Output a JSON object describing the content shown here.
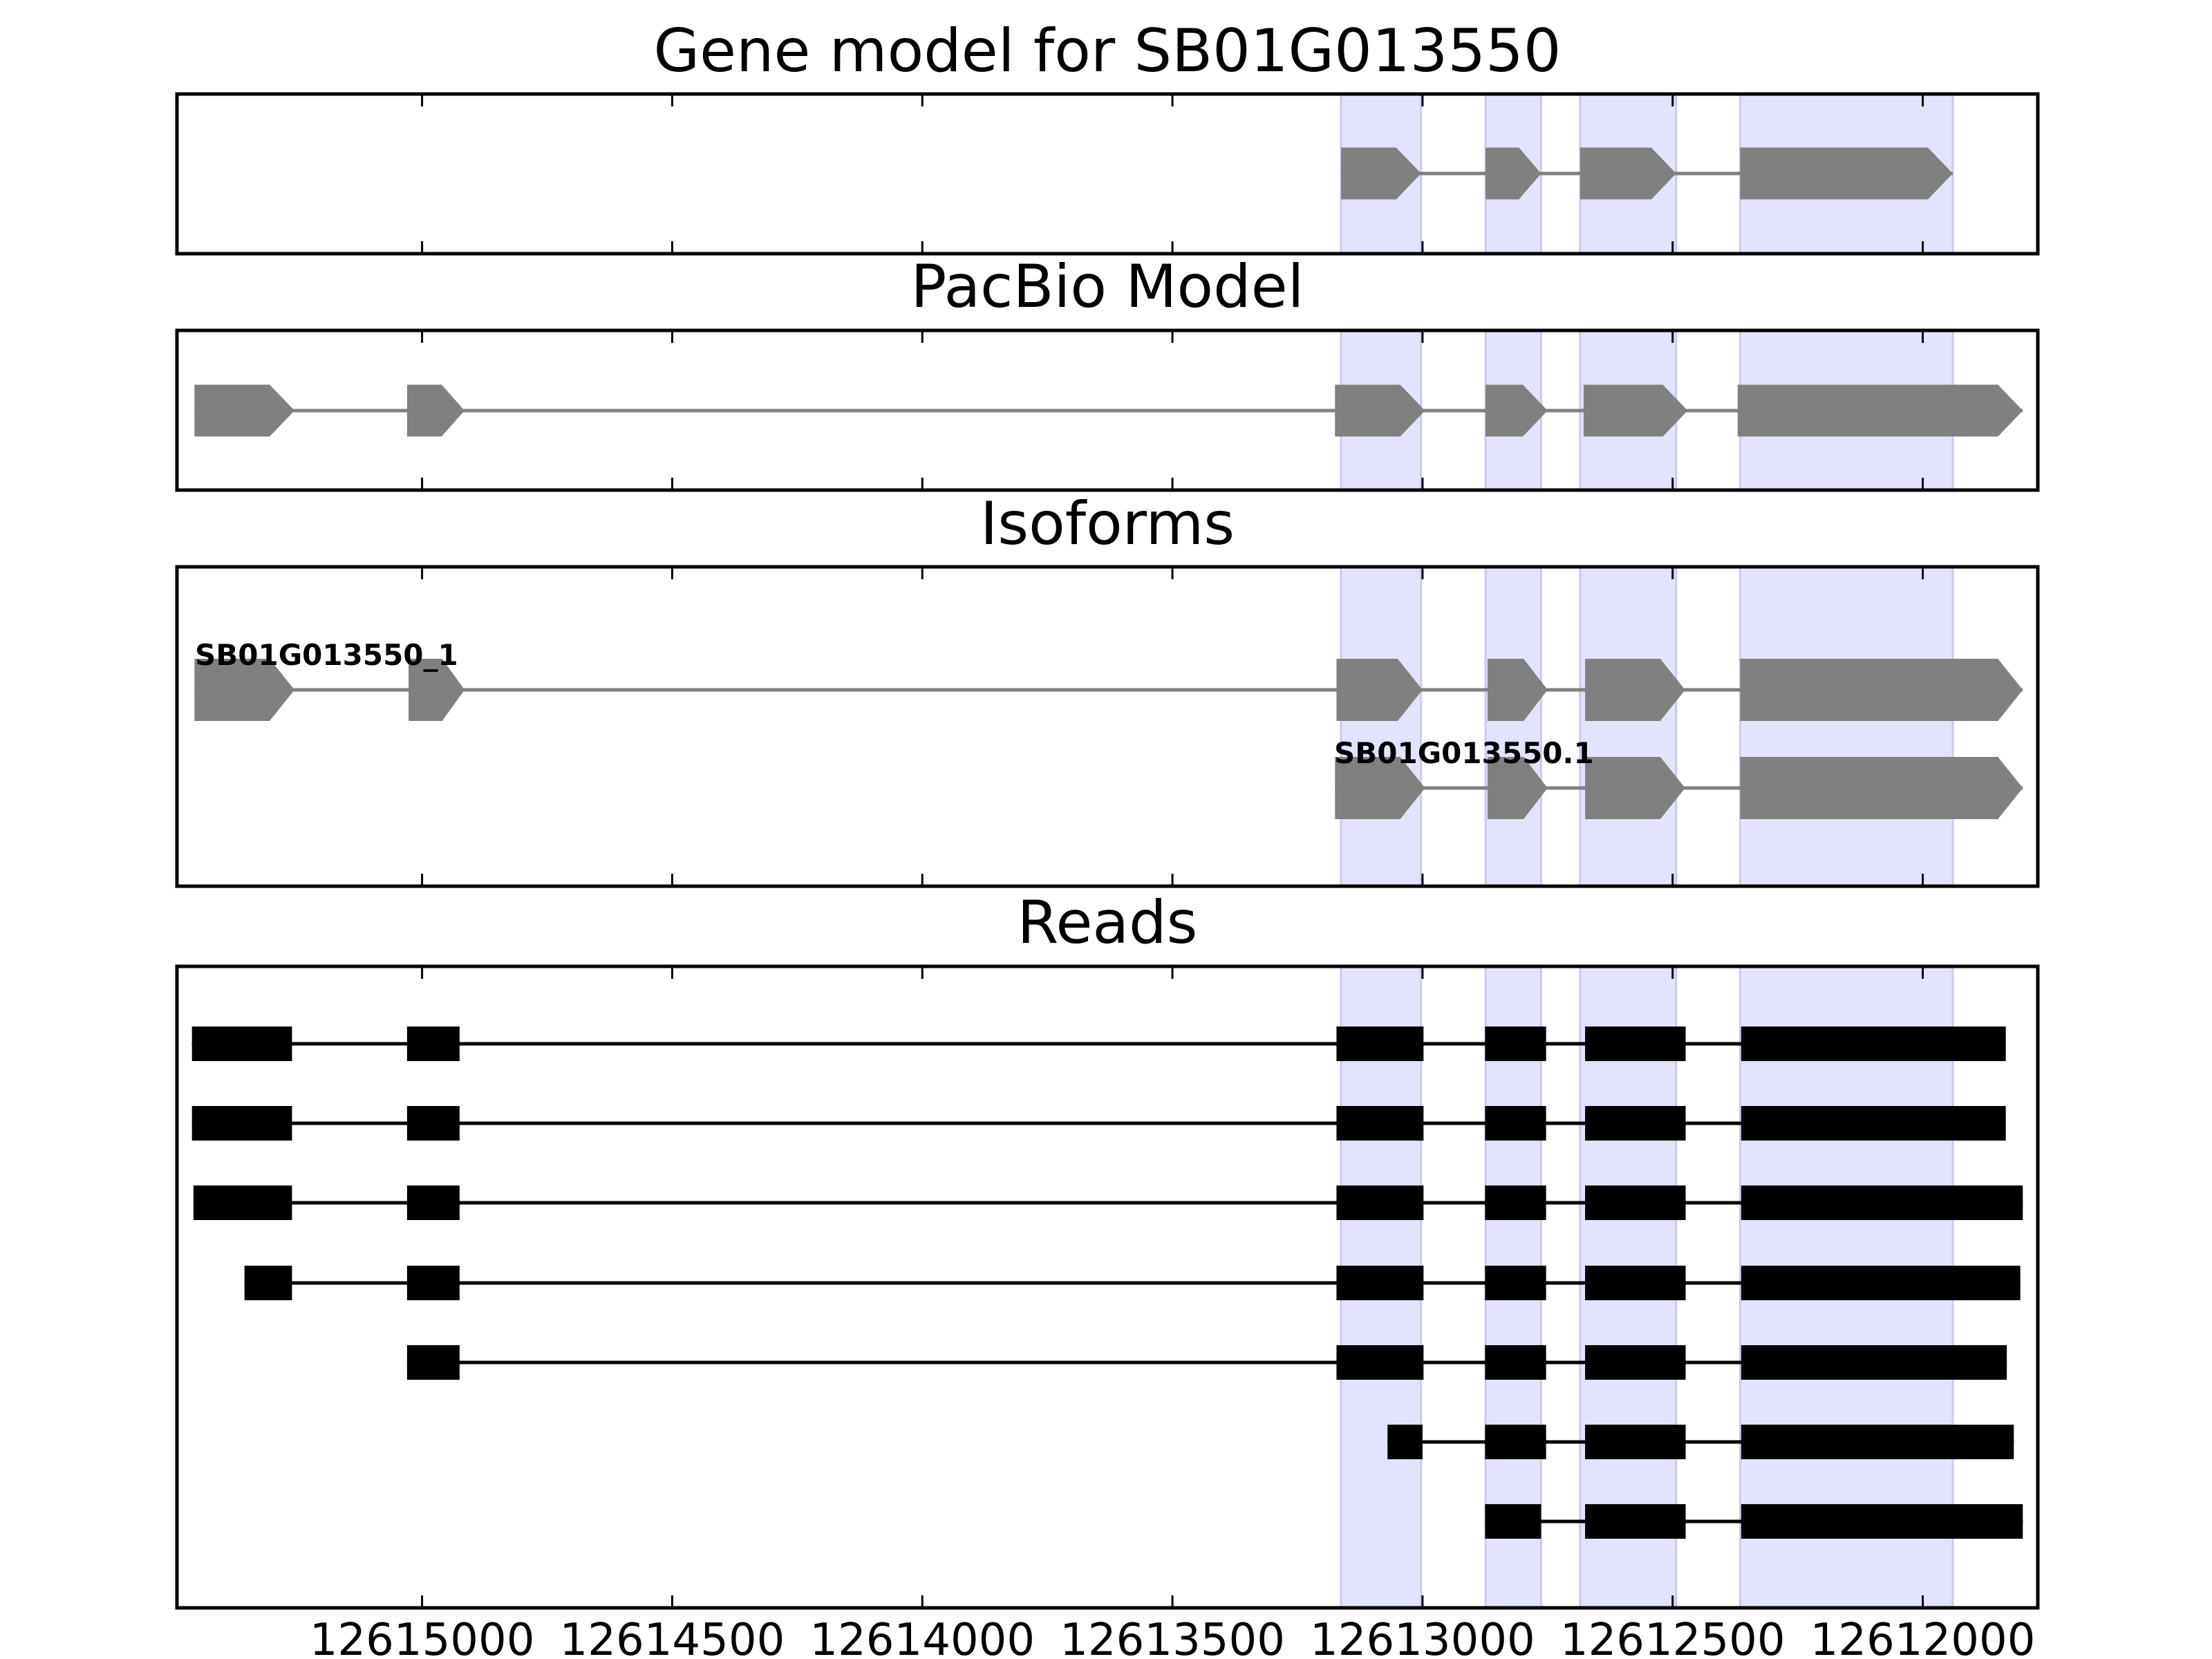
{
  "chart_data": {
    "type": "gene-structure",
    "x_axis": {
      "range": [
        12615490,
        12611770
      ],
      "reversed": true,
      "ticks": [
        12615000,
        12614500,
        12614000,
        12613500,
        12613000,
        12612500,
        12612000
      ],
      "tick_labels": [
        "12615000",
        "12614500",
        "12614000",
        "12613500",
        "12613000",
        "12612500",
        "12612000"
      ]
    },
    "highlight_regions": [
      [
        12613163,
        12613003
      ],
      [
        12612874,
        12612763
      ],
      [
        12612685,
        12612493
      ],
      [
        12612365,
        12611940
      ]
    ],
    "colors": {
      "model": "#808080",
      "reads": "#000000",
      "highlight": "#e3e3fd",
      "highlight_edge": "#c9c9f0"
    },
    "panels": [
      {
        "title": "Gene model for SB01G013550",
        "tracks": [
          {
            "label": "",
            "exons": [
              [
                12613163,
                12613003
              ],
              [
                12612874,
                12612763
              ],
              [
                12612685,
                12612493
              ],
              [
                12612365,
                12611940
              ]
            ]
          }
        ]
      },
      {
        "title": "PacBio Model",
        "tracks": [
          {
            "label": "",
            "exons": [
              [
                12615455,
                12615255
              ],
              [
                12615030,
                12614915
              ],
              [
                12613175,
                12612995
              ],
              [
                12612874,
                12612750
              ],
              [
                12612678,
                12612470
              ],
              [
                12612370,
                12611800
              ]
            ]
          }
        ]
      },
      {
        "title": "Isoforms",
        "tracks": [
          {
            "label": "SB01G013550_1",
            "exons": [
              [
                12615455,
                12615255
              ],
              [
                12615027,
                12614915
              ],
              [
                12613172,
                12613000
              ],
              [
                12612870,
                12612750
              ],
              [
                12612675,
                12612475
              ],
              [
                12612365,
                12611800
              ]
            ]
          },
          {
            "label": "SB01G013550.1",
            "exons": [
              [
                12613175,
                12612995
              ],
              [
                12612870,
                12612750
              ],
              [
                12612675,
                12612475
              ],
              [
                12612365,
                12611800
              ]
            ]
          }
        ]
      },
      {
        "title": "Reads",
        "tracks": [
          {
            "exons": [
              [
                12615460,
                12615260
              ],
              [
                12615030,
                12614925
              ],
              [
                12613172,
                12612998
              ],
              [
                12612875,
                12612753
              ],
              [
                12612675,
                12612474
              ],
              [
                12612363,
                12611834
              ]
            ]
          },
          {
            "exons": [
              [
                12615460,
                12615260
              ],
              [
                12615030,
                12614925
              ],
              [
                12613172,
                12612998
              ],
              [
                12612875,
                12612753
              ],
              [
                12612675,
                12612474
              ],
              [
                12612363,
                12611834
              ]
            ]
          },
          {
            "exons": [
              [
                12615457,
                12615260
              ],
              [
                12615030,
                12614925
              ],
              [
                12613172,
                12612998
              ],
              [
                12612875,
                12612753
              ],
              [
                12612675,
                12612474
              ],
              [
                12612363,
                12611800
              ]
            ]
          },
          {
            "exons": [
              [
                12615355,
                12615260
              ],
              [
                12615030,
                12614925
              ],
              [
                12613172,
                12612998
              ],
              [
                12612875,
                12612753
              ],
              [
                12612675,
                12612474
              ],
              [
                12612363,
                12611805
              ]
            ]
          },
          {
            "exons": [
              [
                12615030,
                12614925
              ],
              [
                12613172,
                12612998
              ],
              [
                12612875,
                12612753
              ],
              [
                12612675,
                12612474
              ],
              [
                12612363,
                12611832
              ]
            ]
          },
          {
            "exons": [
              [
                12613070,
                12613000
              ],
              [
                12612875,
                12612753
              ],
              [
                12612675,
                12612474
              ],
              [
                12612363,
                12611818
              ]
            ]
          },
          {
            "exons": [
              [
                12612875,
                12612763
              ],
              [
                12612675,
                12612474
              ],
              [
                12612363,
                12611800
              ]
            ]
          }
        ]
      }
    ]
  }
}
